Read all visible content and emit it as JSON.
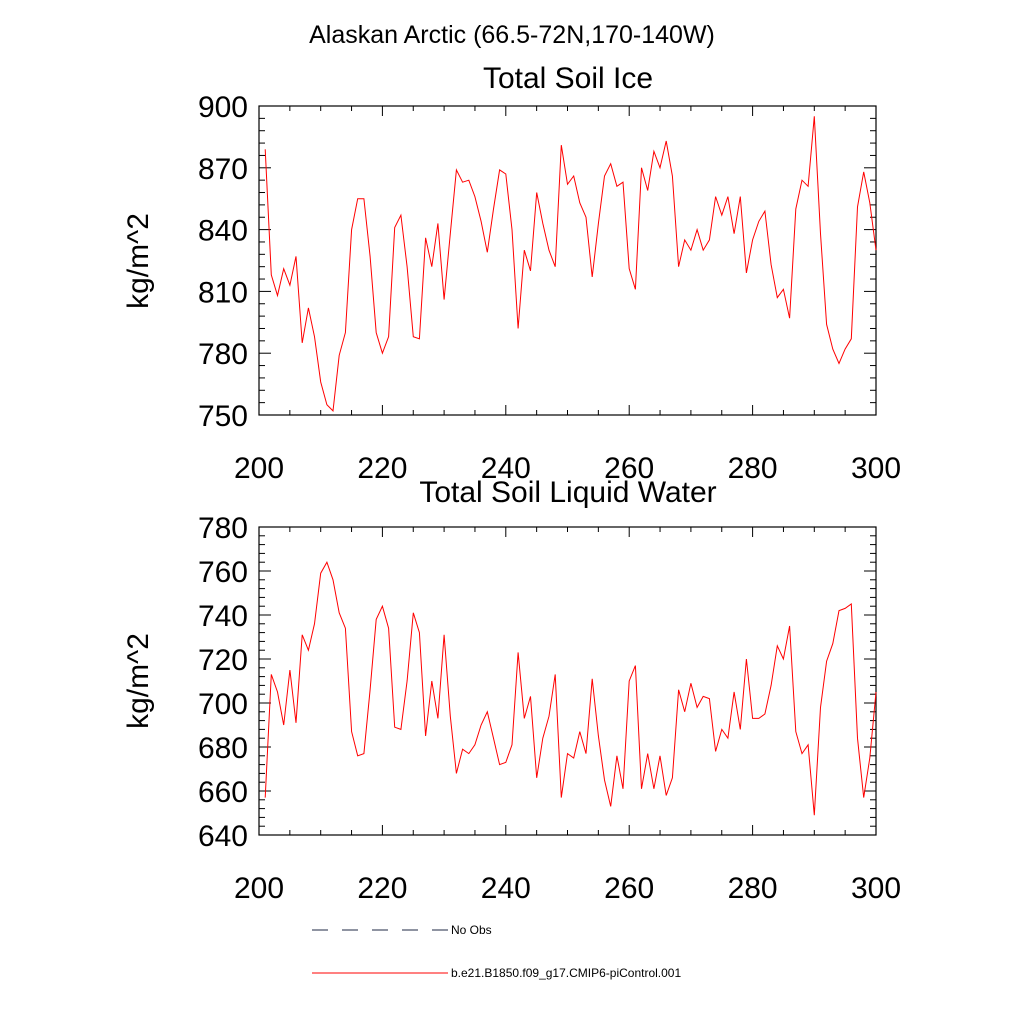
{
  "figure": {
    "suptitle": "Alaskan Arctic (66.5-72N,170-140W)"
  },
  "legend": {
    "entries": [
      {
        "label": "No Obs",
        "style": "dashed",
        "color": "#1f2a44"
      },
      {
        "label": "b.e21.B1850.f09_g17.CMIP6-piControl.001",
        "style": "solid",
        "color": "#ff0000"
      }
    ]
  },
  "chart_data": [
    {
      "type": "line",
      "title": "Total Soil Ice",
      "xlabel": "",
      "ylabel": "kg/m^2",
      "xlim": [
        200,
        300
      ],
      "ylim": [
        750,
        900
      ],
      "xticks": [
        200,
        220,
        240,
        260,
        280,
        300
      ],
      "yticks": [
        750,
        780,
        810,
        840,
        870,
        900
      ],
      "grid": false,
      "series": [
        {
          "color": "#ff0000",
          "x": [
            201,
            202,
            203,
            204,
            205,
            206,
            207,
            208,
            209,
            210,
            211,
            212,
            213,
            214,
            215,
            216,
            217,
            218,
            219,
            220,
            221,
            222,
            223,
            224,
            225,
            226,
            227,
            228,
            229,
            230,
            231,
            232,
            233,
            234,
            235,
            236,
            237,
            238,
            239,
            240,
            241,
            242,
            243,
            244,
            245,
            246,
            247,
            248,
            249,
            250,
            251,
            252,
            253,
            254,
            255,
            256,
            257,
            258,
            259,
            260,
            261,
            262,
            263,
            264,
            265,
            266,
            267,
            268,
            269,
            270,
            271,
            272,
            273,
            274,
            275,
            276,
            277,
            278,
            279,
            280,
            281,
            282,
            283,
            284,
            285,
            286,
            287,
            288,
            289,
            290,
            291,
            292,
            293,
            294,
            295,
            296,
            297,
            298,
            299,
            300
          ],
          "values": [
            879,
            818,
            808,
            821,
            813,
            827,
            785,
            802,
            788,
            766,
            755,
            752,
            779,
            790,
            840,
            855,
            855,
            827,
            790,
            780,
            788,
            841,
            847,
            822,
            788,
            787,
            836,
            822,
            843,
            806,
            838,
            869,
            863,
            864,
            856,
            844,
            829,
            850,
            869,
            867,
            840,
            792,
            830,
            820,
            858,
            843,
            830,
            822,
            881,
            862,
            866,
            853,
            846,
            817,
            843,
            866,
            872,
            861,
            863,
            821,
            811,
            870,
            859,
            878,
            870,
            883,
            866,
            822,
            835,
            830,
            840,
            830,
            835,
            856,
            847,
            856,
            838,
            856,
            819,
            835,
            844,
            849,
            823,
            807,
            811,
            797,
            850,
            864,
            861,
            895,
            838,
            794,
            782,
            775,
            782,
            787,
            851,
            868,
            853,
            830
          ]
        }
      ]
    },
    {
      "type": "line",
      "title": "Total Soil Liquid Water",
      "xlabel": "",
      "ylabel": "kg/m^2",
      "xlim": [
        200,
        300
      ],
      "ylim": [
        640,
        780
      ],
      "xticks": [
        200,
        220,
        240,
        260,
        280,
        300
      ],
      "yticks": [
        640,
        660,
        680,
        700,
        720,
        740,
        760,
        780
      ],
      "grid": false,
      "series": [
        {
          "color": "#ff0000",
          "x": [
            201,
            202,
            203,
            204,
            205,
            206,
            207,
            208,
            209,
            210,
            211,
            212,
            213,
            214,
            215,
            216,
            217,
            218,
            219,
            220,
            221,
            222,
            223,
            224,
            225,
            226,
            227,
            228,
            229,
            230,
            231,
            232,
            233,
            234,
            235,
            236,
            237,
            238,
            239,
            240,
            241,
            242,
            243,
            244,
            245,
            246,
            247,
            248,
            249,
            250,
            251,
            252,
            253,
            254,
            255,
            256,
            257,
            258,
            259,
            260,
            261,
            262,
            263,
            264,
            265,
            266,
            267,
            268,
            269,
            270,
            271,
            272,
            273,
            274,
            275,
            276,
            277,
            278,
            279,
            280,
            281,
            282,
            283,
            284,
            285,
            286,
            287,
            288,
            289,
            290,
            291,
            292,
            293,
            294,
            295,
            296,
            297,
            298,
            299,
            300
          ],
          "values": [
            657,
            713,
            705,
            690,
            715,
            691,
            731,
            724,
            736,
            759,
            764,
            756,
            741,
            734,
            687,
            676,
            677,
            706,
            738,
            744,
            734,
            689,
            688,
            710,
            741,
            732,
            685,
            710,
            693,
            731,
            694,
            668,
            679,
            677,
            681,
            690,
            696,
            684,
            672,
            673,
            681,
            723,
            693,
            703,
            666,
            684,
            694,
            713,
            657,
            677,
            675,
            687,
            677,
            711,
            685,
            665,
            653,
            676,
            661,
            710,
            717,
            661,
            677,
            661,
            676,
            658,
            666,
            706,
            696,
            709,
            698,
            703,
            702,
            678,
            688,
            684,
            705,
            688,
            720,
            693,
            693,
            695,
            708,
            726,
            720,
            735,
            687,
            677,
            681,
            649,
            698,
            719,
            727,
            742,
            743,
            745,
            684,
            657,
            675,
            705
          ]
        }
      ]
    }
  ]
}
